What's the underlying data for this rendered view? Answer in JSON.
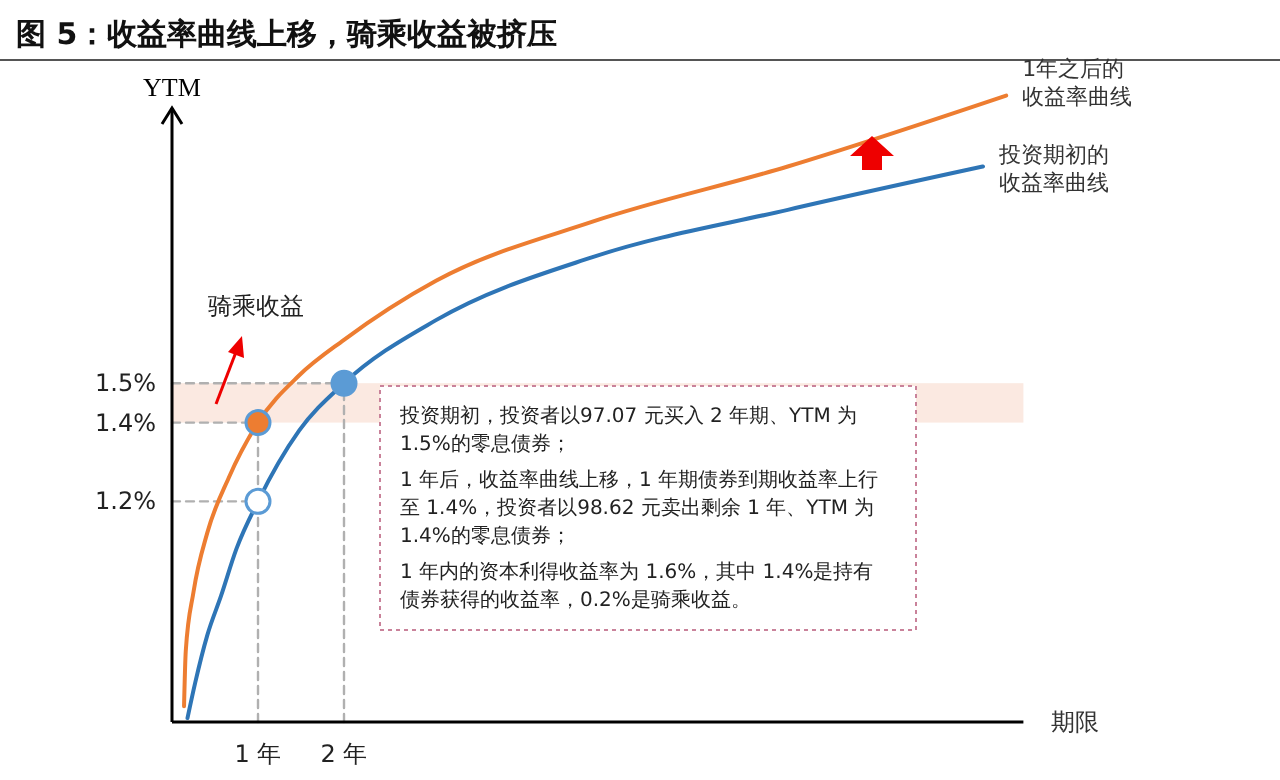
{
  "chart_data": {
    "type": "line",
    "title": "图 5：收益率曲线上移，骑乘收益被挤压",
    "xlabel": "期限",
    "ylabel": "YTM",
    "xlim": [
      0,
      9.9
    ],
    "ylim": [
      0.64,
      2.3
    ],
    "xticks": [
      {
        "value": 1,
        "label": "1 年"
      },
      {
        "value": 2,
        "label": "2 年"
      }
    ],
    "yticks": [
      {
        "value": 1.2,
        "label": "1.2%"
      },
      {
        "value": 1.4,
        "label": "1.4%"
      },
      {
        "value": 1.5,
        "label": "1.5%"
      }
    ],
    "grid": false,
    "legend": false,
    "marker": "none",
    "bands": [
      {
        "axis": "y",
        "from": 1.4,
        "to": 1.5,
        "color": "#fbe9e1"
      }
    ],
    "series": [
      {
        "type": "line",
        "color": "#b0b0b0",
        "line_style": "dashed",
        "x": [
          0,
          2
        ],
        "values": [
          1.5,
          1.5
        ]
      },
      {
        "type": "line",
        "color": "#b0b0b0",
        "line_style": "dashed",
        "x": [
          0,
          1
        ],
        "values": [
          1.4,
          1.4
        ]
      },
      {
        "type": "line",
        "color": "#b0b0b0",
        "line_style": "dashed",
        "x": [
          0,
          1
        ],
        "values": [
          1.2,
          1.2
        ]
      },
      {
        "type": "line",
        "color": "#b0b0b0",
        "line_style": "dashed",
        "x": [
          1,
          1
        ],
        "values": [
          0.64,
          1.4
        ]
      },
      {
        "type": "line",
        "color": "#b0b0b0",
        "line_style": "dashed",
        "x": [
          2,
          2
        ],
        "values": [
          0.64,
          1.5
        ]
      },
      {
        "type": "line",
        "name": "1年之后的收益率曲线",
        "color": "#ed7d31",
        "x": [
          0.14,
          0.16,
          0.25,
          0.41,
          0.66,
          1,
          1.48,
          2,
          3.07,
          4.89,
          7.16,
          9.7
        ],
        "values": [
          0.68,
          0.82,
          0.97,
          1.12,
          1.26,
          1.4,
          1.52,
          1.61,
          1.76,
          1.91,
          2.05,
          2.23
        ]
      },
      {
        "type": "line",
        "name": "投资期初的收益率曲线",
        "color": "#2e75b6",
        "x": [
          0.18,
          0.27,
          0.41,
          0.57,
          0.75,
          1,
          1.48,
          2,
          3.07,
          4.89,
          7.16,
          9.43
        ],
        "values": [
          0.65,
          0.74,
          0.86,
          0.96,
          1.08,
          1.2,
          1.38,
          1.5,
          1.66,
          1.82,
          1.94,
          2.05
        ]
      },
      {
        "type": "scatter",
        "marker": "circle",
        "color": "#ed7d31",
        "x": [
          1
        ],
        "values": [
          1.4
        ]
      },
      {
        "type": "scatter",
        "marker": "circle",
        "color": "#5b9bd5",
        "x": [
          2
        ],
        "values": [
          1.5
        ]
      },
      {
        "type": "scatter",
        "marker": "circle",
        "color": "#ffffff",
        "x": [
          1
        ],
        "values": [
          1.2
        ]
      }
    ],
    "annotations": [
      "骑乘收益",
      "投资期初，投资者以97.07 元买入 2 年期、YTM 为 1.5%的零息债券；",
      "1 年后，收益率曲线上移，1 年期债券到期收益率上行至 1.4%，投资者以98.62 元卖出剩余 1 年、YTM 为 1.4%的零息债券；",
      "1 年内的资本利得收益率为 1.6%，其中 1.4%是持有债券获得的收益率，0.2%是骑乘收益。"
    ]
  }
}
